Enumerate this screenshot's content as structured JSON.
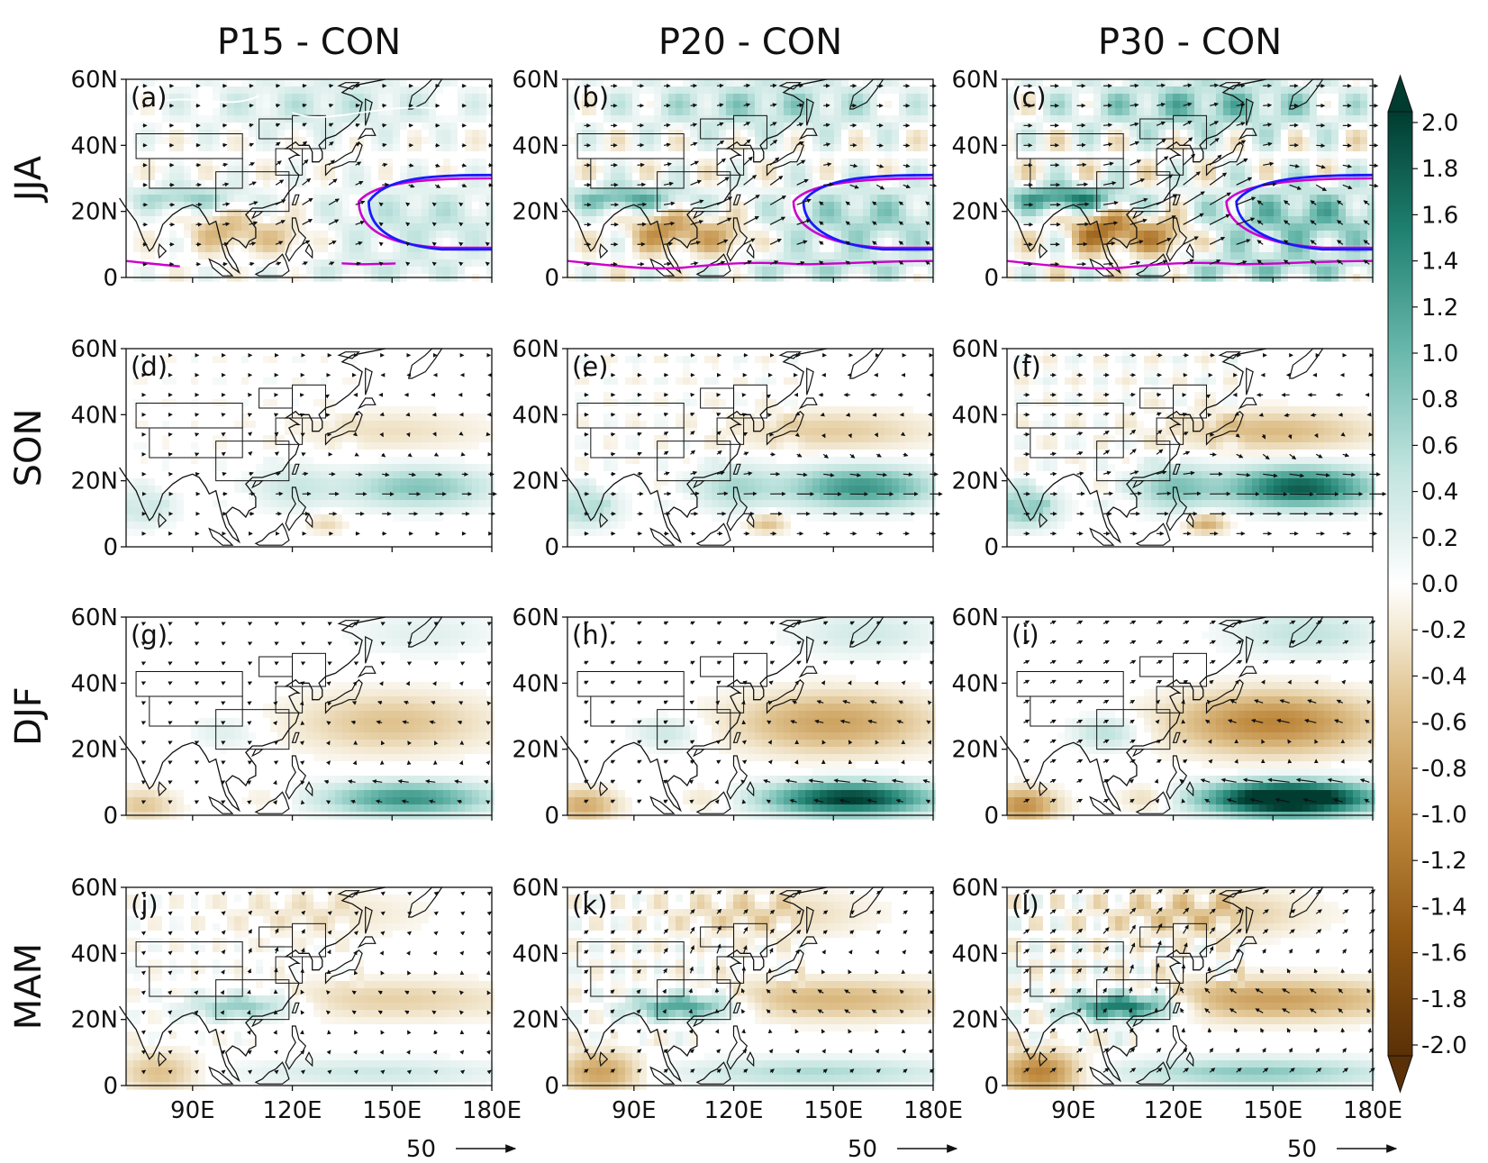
{
  "chart_data": {
    "type": "heatmap",
    "description_kind": "map-panel-grid",
    "columns": [
      {
        "title": "P15 - CON",
        "scale": 0.55
      },
      {
        "title": "P20 - CON",
        "scale": 0.85
      },
      {
        "title": "P30 - CON",
        "scale": 1.15
      }
    ],
    "rows": [
      {
        "season": "JJA",
        "labels": [
          "(a)",
          "(b)",
          "(c)"
        ],
        "contours": true
      },
      {
        "season": "SON",
        "labels": [
          "(d)",
          "(e)",
          "(f)"
        ],
        "contours": false
      },
      {
        "season": "DJF",
        "labels": [
          "(g)",
          "(h)",
          "(i)"
        ],
        "contours": false
      },
      {
        "season": "MAM",
        "labels": [
          "(j)",
          "(k)",
          "(l)"
        ],
        "contours": false
      }
    ],
    "x_ticks": [
      {
        "value": 90,
        "label": "90E"
      },
      {
        "value": 120,
        "label": "120E"
      },
      {
        "value": 150,
        "label": "150E"
      },
      {
        "value": 180,
        "label": "180E"
      }
    ],
    "y_ticks": [
      {
        "value": 0,
        "label": "0"
      },
      {
        "value": 20,
        "label": "20N"
      },
      {
        "value": 40,
        "label": "40N"
      },
      {
        "value": 60,
        "label": "60N"
      }
    ],
    "xlim": [
      70,
      180
    ],
    "ylim": [
      0,
      60
    ],
    "colorbar": {
      "ticks": [
        "2.0",
        "1.8",
        "1.6",
        "1.4",
        "1.2",
        "1.0",
        "0.8",
        "0.6",
        "0.4",
        "0.2",
        "0.0",
        "-0.2",
        "-0.4",
        "-0.6",
        "-0.8",
        "-1.0",
        "-1.2",
        "-1.4",
        "-1.6",
        "-1.8",
        "-2.0"
      ],
      "range": [
        -2.0,
        2.0
      ],
      "colors": {
        "-2.0": "#5a3006",
        "-1.5": "#8f5612",
        "-1.0": "#bf8a3f",
        "-0.5": "#dfc28e",
        "-0.2": "#f3e9d3",
        "0.0": "#ffffff",
        "0.2": "#e5f2f0",
        "0.5": "#bfe3de",
        "1.0": "#66b6aa",
        "1.5": "#1f8070",
        "2.0": "#003c30"
      }
    },
    "vector_reference": {
      "label": "50",
      "value": 50
    },
    "contour_colors": {
      "blue": "#1a1aff",
      "magenta": "#cc00cc",
      "white": "#ffffff"
    }
  }
}
